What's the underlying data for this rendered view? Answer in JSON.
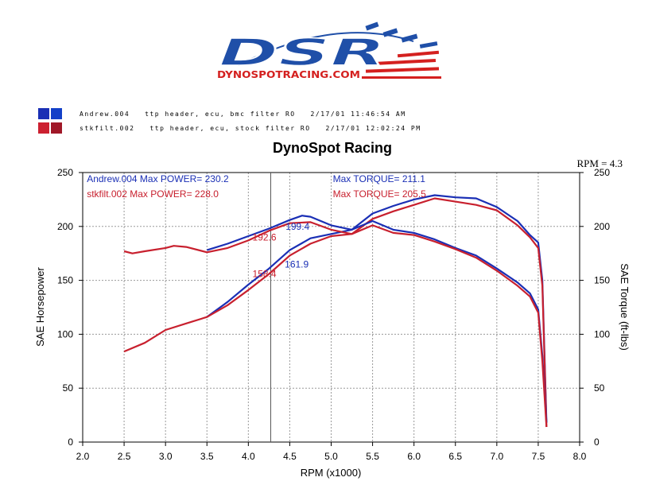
{
  "logo": {
    "brand_text": "DSR",
    "site_text": "DYNOSPOTRACING.COM",
    "colors": {
      "blue": "#1f4fa8",
      "red": "#d4201f"
    }
  },
  "legend_runs": [
    {
      "colors": [
        "#1a2fb5",
        "#1340c8"
      ],
      "text": "Andrew.004   ttp header, ecu, bmc filter RO   2/17/01 11:46:54 AM"
    },
    {
      "colors": [
        "#cc2030",
        "#a01828"
      ],
      "text": "stkfilt.002   ttp header, ecu, stock filter RO   2/17/01 12:02:24 PM"
    }
  ],
  "chart_data": {
    "type": "line",
    "title": "DynoSpot Racing",
    "xlabel": "RPM (x1000)",
    "ylabel_left": "SAE Horsepower",
    "ylabel_right": "SAE Torque (ft-lbs)",
    "xlim": [
      2.0,
      8.0
    ],
    "ylim": [
      0,
      250
    ],
    "xticks": [
      "2.0",
      "2.5",
      "3.0",
      "3.5",
      "4.0",
      "4.5",
      "5.0",
      "5.5",
      "6.0",
      "6.5",
      "7.0",
      "7.5",
      "8.0"
    ],
    "yticks": [
      "0",
      "50",
      "100",
      "150",
      "200",
      "250"
    ],
    "grid": true,
    "cursor_label": "RPM = 4.3",
    "cursor_x": 4.27,
    "info_lines": [
      {
        "text": "Andrew.004  Max POWER= 230.2",
        "color": "#1a2fb5",
        "x": 2.05,
        "y": 241
      },
      {
        "text": "stkfilt.002  Max POWER= 228.0",
        "color": "#c8202e",
        "x": 2.05,
        "y": 227
      },
      {
        "text": "Max TORQUE= 211.1",
        "color": "#1a2fb5",
        "x": 5.02,
        "y": 241
      },
      {
        "text": "Max TORQUE= 205.5",
        "color": "#c8202e",
        "x": 5.02,
        "y": 227
      }
    ],
    "cursor_values": [
      {
        "text": "199.4",
        "color": "#1a2fb5",
        "x": 4.45,
        "y": 197
      },
      {
        "text": "192.6",
        "color": "#c8202e",
        "x": 4.05,
        "y": 187
      },
      {
        "text": "161.9",
        "color": "#1a2fb5",
        "x": 4.44,
        "y": 162
      },
      {
        "text": "158.4",
        "color": "#c8202e",
        "x": 4.05,
        "y": 153
      }
    ],
    "series": [
      {
        "name": "Andrew.004",
        "measure": "horsepower",
        "color": "#1a2fb5",
        "x": [
          3.5,
          3.75,
          4.0,
          4.25,
          4.5,
          4.75,
          5.0,
          5.25,
          5.5,
          5.75,
          6.0,
          6.25,
          6.5,
          6.75,
          7.0,
          7.25,
          7.4,
          7.5,
          7.55,
          7.6
        ],
        "y": [
          116,
          130,
          146,
          161,
          178,
          189,
          193,
          197,
          212,
          219,
          225,
          229,
          227,
          226,
          218,
          205,
          192,
          185,
          150,
          18
        ]
      },
      {
        "name": "stkfilt.002",
        "measure": "horsepower",
        "color": "#c8202e",
        "x": [
          2.5,
          2.75,
          3.0,
          3.25,
          3.5,
          3.75,
          4.0,
          4.25,
          4.5,
          4.75,
          5.0,
          5.25,
          5.5,
          5.75,
          6.0,
          6.25,
          6.5,
          6.75,
          7.0,
          7.25,
          7.4,
          7.5,
          7.55,
          7.6
        ],
        "y": [
          84,
          92,
          104,
          110,
          116,
          127,
          141,
          156,
          173,
          184,
          191,
          193,
          207,
          214,
          220,
          226,
          223,
          220,
          215,
          201,
          190,
          180,
          145,
          14
        ]
      },
      {
        "name": "Andrew.004",
        "measure": "torque",
        "color": "#1a2fb5",
        "x": [
          3.5,
          3.75,
          4.0,
          4.25,
          4.5,
          4.65,
          4.75,
          5.0,
          5.25,
          5.5,
          5.75,
          6.0,
          6.25,
          6.5,
          6.75,
          7.0,
          7.25,
          7.4,
          7.5,
          7.55,
          7.6
        ],
        "y": [
          178,
          184,
          191,
          198,
          206,
          210,
          209,
          201,
          197,
          205,
          197,
          194,
          188,
          180,
          173,
          161,
          148,
          138,
          123,
          80,
          18
        ]
      },
      {
        "name": "stkfilt.002",
        "measure": "torque",
        "color": "#c8202e",
        "x": [
          2.5,
          2.6,
          2.75,
          3.0,
          3.1,
          3.25,
          3.5,
          3.75,
          4.0,
          4.25,
          4.5,
          4.75,
          5.0,
          5.25,
          5.5,
          5.75,
          6.0,
          6.25,
          6.5,
          6.75,
          7.0,
          7.25,
          7.4,
          7.5,
          7.55,
          7.6
        ],
        "y": [
          177,
          175,
          177,
          180,
          182,
          181,
          176,
          180,
          187,
          196,
          203,
          204,
          197,
          193,
          201,
          194,
          192,
          186,
          179,
          171,
          159,
          145,
          135,
          120,
          75,
          14
        ]
      }
    ]
  }
}
